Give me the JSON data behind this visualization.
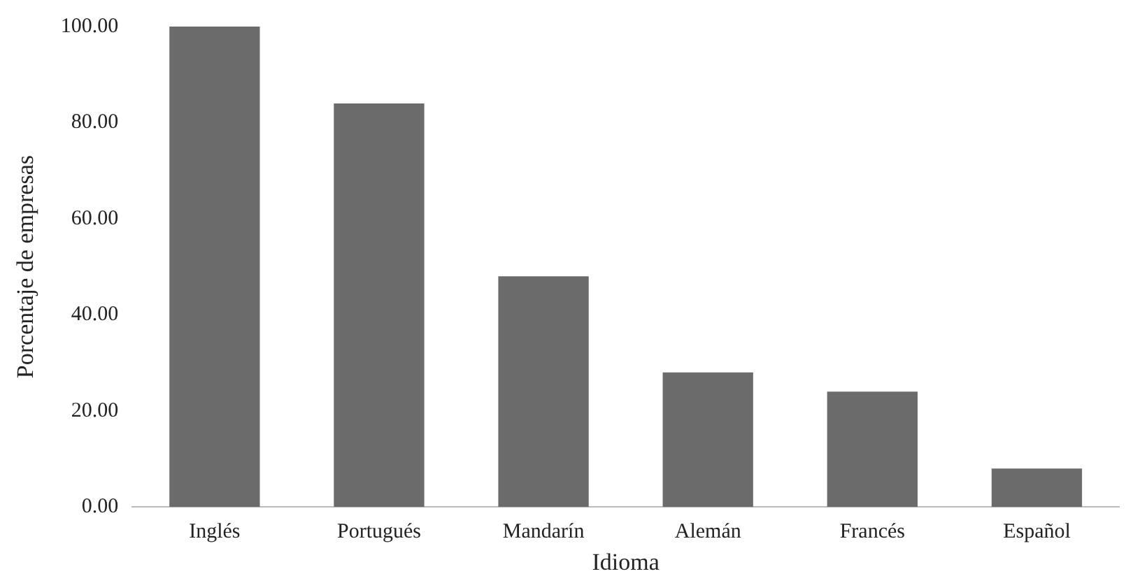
{
  "chart_data": {
    "type": "bar",
    "xlabel": "Idioma",
    "ylabel": "Porcentaje de empresas",
    "categories": [
      "Inglés",
      "Portugués",
      "Mandarín",
      "Alemán",
      "Francés",
      "Español"
    ],
    "values": [
      100,
      84,
      48,
      28,
      24,
      8
    ],
    "color": "#6b6b6b",
    "ylim": [
      0,
      100
    ],
    "yticks": [
      {
        "value": 0,
        "label": "0.00"
      },
      {
        "value": 20,
        "label": "20.00"
      },
      {
        "value": 40,
        "label": "40.00"
      },
      {
        "value": 60,
        "label": "60.00"
      },
      {
        "value": 80,
        "label": "80.00"
      },
      {
        "value": 100,
        "label": "100.00"
      }
    ],
    "grid": false
  }
}
